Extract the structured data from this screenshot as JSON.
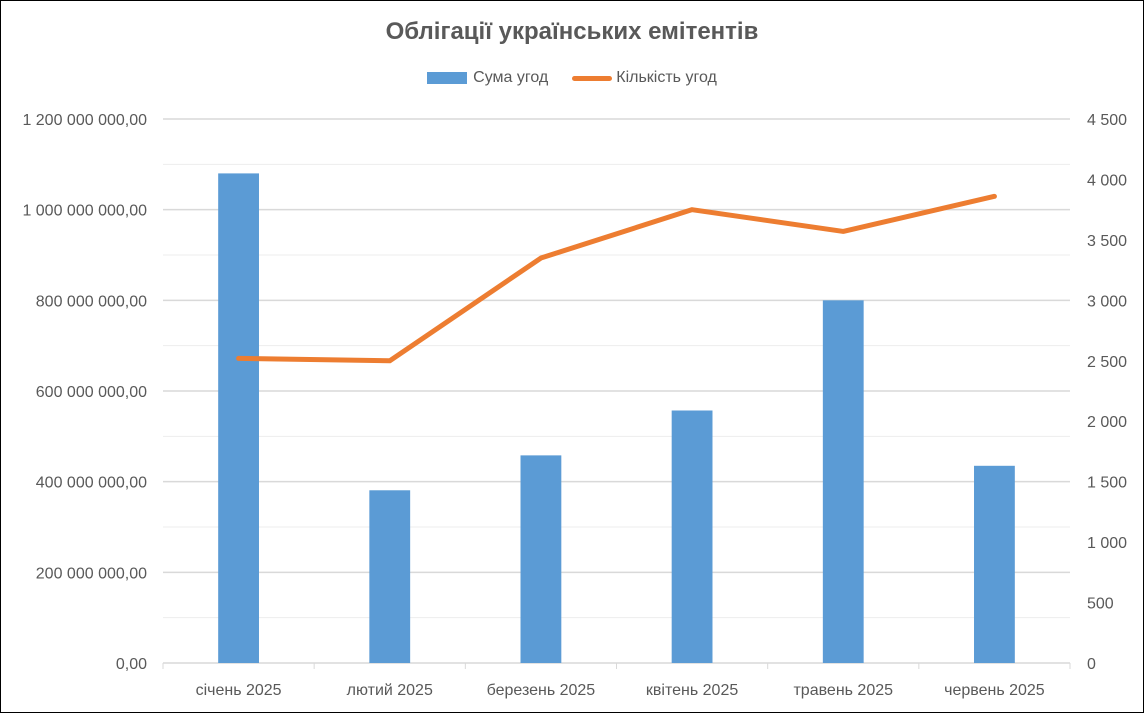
{
  "chart_data": {
    "type": "bar",
    "title": "Облігації українських емітентів",
    "categories": [
      "січень 2025",
      "лютий 2025",
      "березень 2025",
      "квітень 2025",
      "травень 2025",
      "червень 2025"
    ],
    "series": [
      {
        "name": "Сума угод",
        "type": "bar",
        "axis": "left",
        "color": "#5B9BD5",
        "values": [
          1080000000,
          381000000,
          458000000,
          557000000,
          800000000,
          435000000
        ]
      },
      {
        "name": "Кількість угод",
        "type": "line",
        "axis": "right",
        "color": "#ED7D31",
        "values": [
          2520,
          2500,
          3350,
          3750,
          3570,
          3860
        ]
      }
    ],
    "y_left": {
      "min": 0,
      "max": 1200000000,
      "tick_labels": [
        "0,00",
        "200 000 000,00",
        "400 000 000,00",
        "600 000 000,00",
        "800 000 000,00",
        "1 000 000 000,00",
        "1 200 000 000,00"
      ]
    },
    "y_right": {
      "min": 0,
      "max": 4500,
      "tick_labels": [
        "0",
        "500",
        "1 000",
        "1 500",
        "2 000",
        "2 500",
        "3 000",
        "3 500",
        "4 000",
        "4 500"
      ]
    },
    "grid": true,
    "legend_position": "top"
  }
}
